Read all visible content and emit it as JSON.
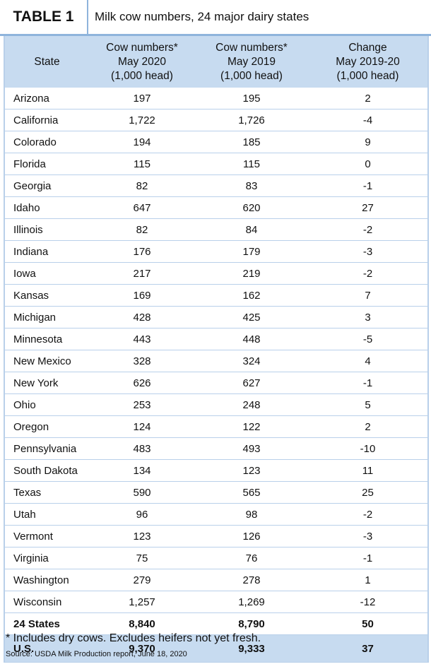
{
  "header": {
    "label": "TABLE 1",
    "title": "Milk cow numbers, 24 major dairy states"
  },
  "table": {
    "columns": [
      "State",
      "Cow numbers*\nMay 2020\n(1,000 head)",
      "Cow numbers*\nMay 2019\n(1,000 head)",
      "Change\nMay 2019-20\n(1,000 head)"
    ],
    "rows": [
      [
        "Arizona",
        "197",
        "195",
        "2"
      ],
      [
        "California",
        "1,722",
        "1,726",
        "-4"
      ],
      [
        "Colorado",
        "194",
        "185",
        "9"
      ],
      [
        "Florida",
        "115",
        "115",
        "0"
      ],
      [
        "Georgia",
        "82",
        "83",
        "-1"
      ],
      [
        "Idaho",
        "647",
        "620",
        "27"
      ],
      [
        "Illinois",
        "82",
        "84",
        "-2"
      ],
      [
        "Indiana",
        "176",
        "179",
        "-3"
      ],
      [
        "Iowa",
        "217",
        "219",
        "-2"
      ],
      [
        "Kansas",
        "169",
        "162",
        "7"
      ],
      [
        "Michigan",
        "428",
        "425",
        "3"
      ],
      [
        "Minnesota",
        "443",
        "448",
        "-5"
      ],
      [
        "New Mexico",
        "328",
        "324",
        "4"
      ],
      [
        "New York",
        "626",
        "627",
        "-1"
      ],
      [
        "Ohio",
        "253",
        "248",
        "5"
      ],
      [
        "Oregon",
        "124",
        "122",
        "2"
      ],
      [
        "Pennsylvania",
        "483",
        "493",
        "-10"
      ],
      [
        "South Dakota",
        "134",
        "123",
        "11"
      ],
      [
        "Texas",
        "590",
        "565",
        "25"
      ],
      [
        "Utah",
        "96",
        "98",
        "-2"
      ],
      [
        "Vermont",
        "123",
        "126",
        "-3"
      ],
      [
        "Virginia",
        "75",
        "76",
        "-1"
      ],
      [
        "Washington",
        "279",
        "278",
        "1"
      ],
      [
        "Wisconsin",
        "1,257",
        "1,269",
        "-12"
      ]
    ],
    "totals": [
      [
        "24 States",
        "8,840",
        "8,790",
        "50"
      ],
      [
        "U.S.",
        "9,370",
        "9,333",
        "37"
      ]
    ]
  },
  "footnote": "* Includes dry cows. Excludes heifers not yet fresh.",
  "source": "Source: USDA Milk Production report, June 18, 2020"
}
